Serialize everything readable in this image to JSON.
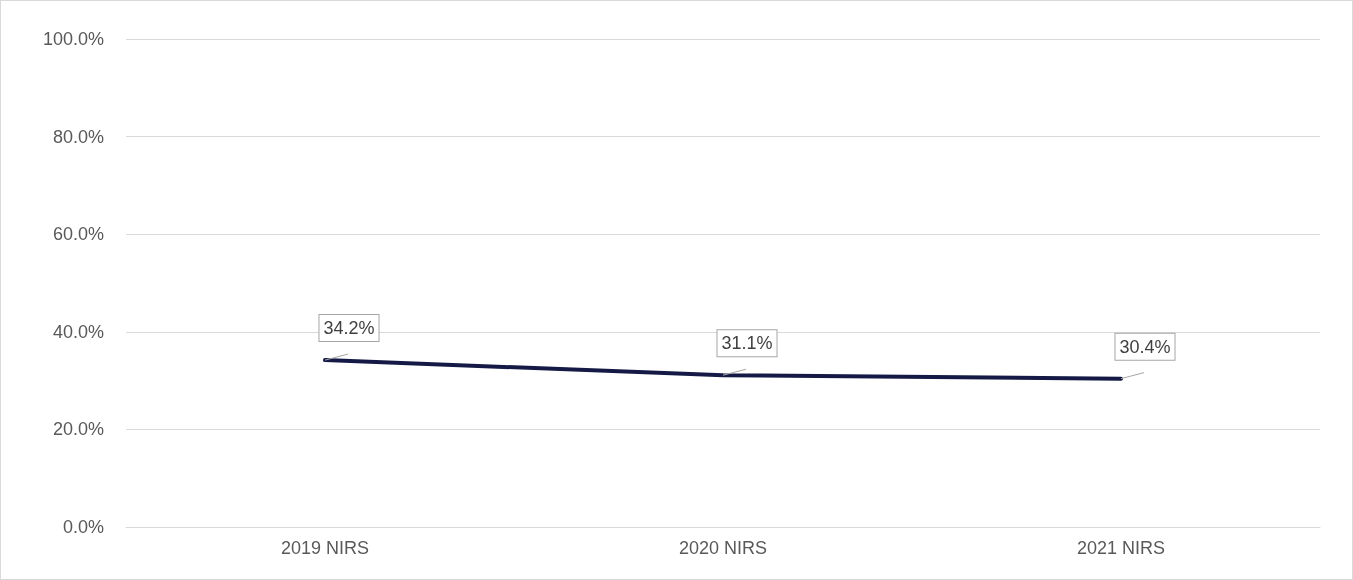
{
  "chart_data": {
    "type": "line",
    "categories": [
      "2019 NIRS",
      "2020 NIRS",
      "2021 NIRS"
    ],
    "series": [
      {
        "color": "#141a45",
        "values": [
          34.2,
          31.1,
          30.4
        ],
        "value_labels": [
          "34.2%",
          "31.1%",
          "30.4%"
        ]
      }
    ],
    "ylim": [
      0,
      100
    ],
    "yticks": [
      {
        "value": 0,
        "label": "0.0%"
      },
      {
        "value": 20,
        "label": "20.0%"
      },
      {
        "value": 40,
        "label": "40.0%"
      },
      {
        "value": 60,
        "label": "60.0%"
      },
      {
        "value": 80,
        "label": "80.0%"
      },
      {
        "value": 100,
        "label": "100.0%"
      }
    ],
    "grid": "y",
    "marker": "none",
    "line_style": "solid"
  }
}
